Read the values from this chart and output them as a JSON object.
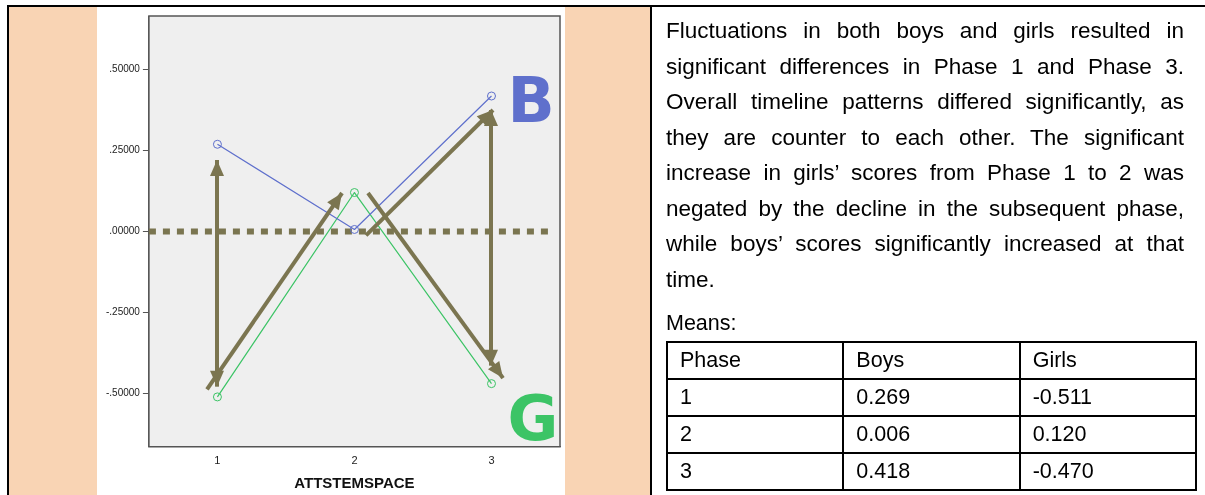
{
  "chart_data": [
    {
      "type": "line",
      "categories": [
        "1",
        "2",
        "3"
      ],
      "xlabel": "ATTSTEMSPACE",
      "series": [
        {
          "name": "B",
          "color": "#5f70cc",
          "values": [
            0.269,
            0.006,
            0.418
          ]
        },
        {
          "name": "G",
          "color": "#3cc466",
          "values": [
            -0.511,
            0.12,
            -0.47
          ]
        }
      ],
      "ylim": [
        -0.665,
        0.665
      ],
      "yticks": [
        {
          "value": -0.5,
          "label": "-.50000"
        },
        {
          "value": -0.25,
          "label": "-.25000"
        },
        {
          "value": 0,
          "label": ".00000"
        },
        {
          "value": 0.25,
          "label": ".25000"
        },
        {
          "value": 0.5,
          "label": ".50000"
        }
      ],
      "ref_lines": [
        {
          "axis": "y",
          "value": 0,
          "color": "#7a7550",
          "line_style": "dotted"
        }
      ],
      "marker": "circle",
      "line_style": "solid",
      "grid": false,
      "legend": false,
      "annotations": [
        "Fluctuations in both boys and girls resulted in significant differences in Phase 1 and Phase 3. Overall timeline patterns differed significantly, as they are counter to each other. The significant increase in girls’ scores from Phase 1 to 2 was negated by the decline in the subsequent phase, while boys’ scores significantly increased at that time."
      ]
    },
    {
      "type": "other",
      "title": "Means:",
      "xlabel": "Phase",
      "categories": [
        "1",
        "2",
        "3"
      ],
      "series": [
        {
          "name": "Boys",
          "values": [
            0.269,
            0.006,
            0.418
          ],
          "value_labels": [
            "0.269",
            "0.006",
            "0.418"
          ]
        },
        {
          "name": "Girls",
          "values": [
            -0.511,
            0.12,
            -0.47
          ],
          "value_labels": [
            "-0.511",
            "0.120",
            "-0.470"
          ]
        }
      ]
    }
  ]
}
